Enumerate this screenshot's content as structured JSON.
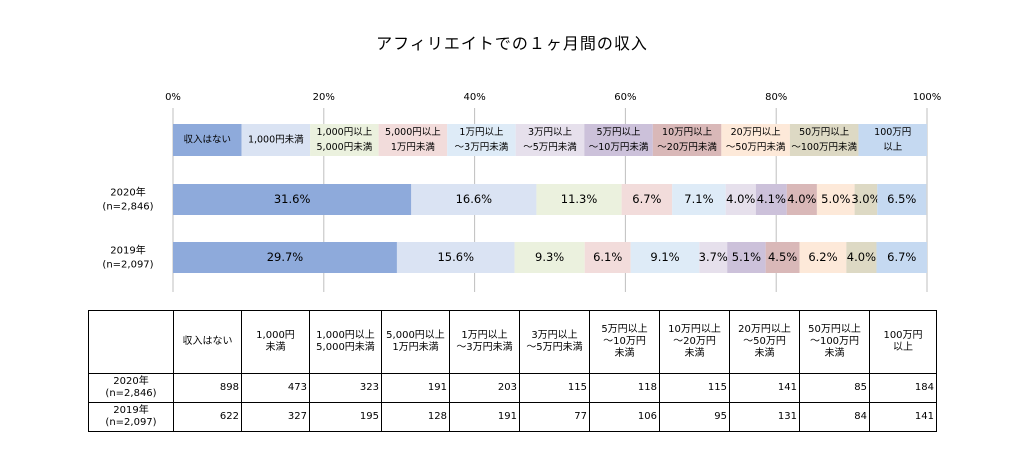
{
  "chart_data": {
    "type": "stacked-bar",
    "title": "アフィリエイトでの１ヶ月間の収入",
    "orientation": "horizontal",
    "percent_axis_ticks": [
      "0%",
      "20%",
      "40%",
      "60%",
      "80%",
      "100%"
    ],
    "xlim": [
      0,
      100
    ],
    "grid": true,
    "categories": [
      {
        "label": "収入はない",
        "color": "#8eaadb"
      },
      {
        "label": "1,000円未満",
        "color": "#dae3f3"
      },
      {
        "label": "1,000円以上\n5,000円未満",
        "color": "#ebf1de"
      },
      {
        "label": "5,000円以上\n1万円未満",
        "color": "#f2dcdb"
      },
      {
        "label": "1万円以上\n～3万円未満",
        "color": "#deebf7"
      },
      {
        "label": "3万円以上\n～5万円未満",
        "color": "#e6e0ec"
      },
      {
        "label": "5万円以上\n～10万円未満",
        "color": "#ccc1da"
      },
      {
        "label": "10万円以上\n～20万円未満",
        "color": "#d9b8b8"
      },
      {
        "label": "20万円以上\n～50万円未満",
        "color": "#fde9d9"
      },
      {
        "label": "50万円以上\n～100万円未満",
        "color": "#ddd9c4"
      },
      {
        "label": "100万円\n以上",
        "color": "#c5d9f1"
      }
    ],
    "series": [
      {
        "name": "2020年\n(n=2,846)",
        "percent_labels": [
          "31.6%",
          "16.6%",
          "11.3%",
          "6.7%",
          "7.1%",
          "4.0%",
          "4.1%",
          "4.0%",
          "5.0%",
          "3.0%",
          "6.5%"
        ],
        "values": [
          31.6,
          16.6,
          11.3,
          6.7,
          7.1,
          4.0,
          4.1,
          4.0,
          5.0,
          3.0,
          6.5
        ]
      },
      {
        "name": "2019年\n(n=2,097)",
        "percent_labels": [
          "29.7%",
          "15.6%",
          "9.3%",
          "6.1%",
          "9.1%",
          "3.7%",
          "5.1%",
          "4.5%",
          "6.2%",
          "4.0%",
          "6.7%"
        ],
        "values": [
          29.7,
          15.6,
          9.3,
          6.1,
          9.1,
          3.7,
          5.1,
          4.5,
          6.2,
          4.0,
          6.7
        ]
      }
    ]
  },
  "table": {
    "headers": [
      "収入はない",
      "1,000円\n未満",
      "1,000円以上\n5,000円未満",
      "5,000円以上\n1万円未満",
      "1万円以上\n～3万円未満",
      "3万円以上\n～5万円未満",
      "5万円以上\n～10万円\n未満",
      "10万円以上\n～20万円\n未満",
      "20万円以上\n～50万円\n未満",
      "50万円以上\n～100万円\n未満",
      "100万円\n以上"
    ],
    "rows": [
      {
        "label": "2020年\n(n=2,846)",
        "cells": [
          "898",
          "473",
          "323",
          "191",
          "203",
          "115",
          "118",
          "115",
          "141",
          "85",
          "184"
        ]
      },
      {
        "label": "2019年\n(n=2,097)",
        "cells": [
          "622",
          "327",
          "195",
          "128",
          "191",
          "77",
          "106",
          "95",
          "131",
          "84",
          "141"
        ]
      }
    ]
  }
}
